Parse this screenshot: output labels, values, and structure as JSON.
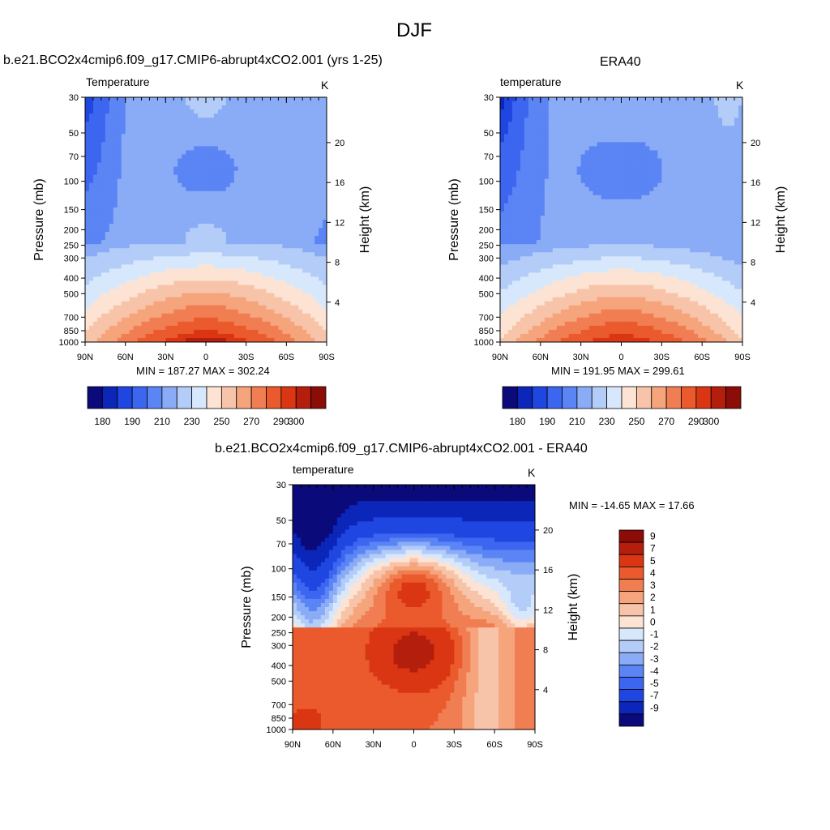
{
  "page_title": "DJF",
  "colors": {
    "temp_scale": [
      "#0a0a7a",
      "#0b26b8",
      "#1f46e0",
      "#3d66f0",
      "#5b84f5",
      "#8aacf6",
      "#b3ccf8",
      "#d8e8fc",
      "#fde3d3",
      "#f7c4aa",
      "#f5a47c",
      "#f07e52",
      "#ea5a2c",
      "#da3614",
      "#b41e0c",
      "#8c0c07"
    ],
    "diff_scale": [
      "#0a0a7a",
      "#0b26b8",
      "#1f46e0",
      "#3d66f0",
      "#5b84f5",
      "#8aacf6",
      "#b3ccf8",
      "#d8e8fc",
      "#fde3d3",
      "#f7c4aa",
      "#f5a47c",
      "#f07e52",
      "#ea5a2c",
      "#da3614",
      "#b41e0c",
      "#8c0c07"
    ]
  },
  "chart_data": [
    {
      "type": "heatmap",
      "case_title": "b.e21.BCO2x4cmip6.f09_g17.CMIP6-abrupt4xCO2.001 (yrs 1-25)",
      "left_string": "Temperature",
      "right_string": "K",
      "xlabel": "",
      "ylabel": "Pressure (mb)",
      "y2label": "Height (km)",
      "xticks": [
        "90N",
        "60N",
        "30N",
        "0",
        "30S",
        "60S",
        "90S"
      ],
      "yticks": [
        "30",
        "50",
        "70",
        "100",
        "150",
        "200",
        "250",
        "300",
        "400",
        "500",
        "700",
        "850",
        "1000"
      ],
      "y2ticks": [
        "20",
        "16",
        "12",
        "8",
        "4"
      ],
      "stats": "MIN = 187.27  MAX = 302.24",
      "colorbar_labels": [
        "180",
        "190",
        "210",
        "230",
        "250",
        "270",
        "290",
        "300"
      ],
      "min": 187.27,
      "max": 302.24
    },
    {
      "type": "heatmap",
      "case_title": "ERA40",
      "left_string": "temperature",
      "right_string": "K",
      "xlabel": "",
      "ylabel": "Pressure (mb)",
      "y2label": "Height (km)",
      "xticks": [
        "90N",
        "60N",
        "30N",
        "0",
        "30S",
        "60S",
        "90S"
      ],
      "yticks": [
        "30",
        "50",
        "70",
        "100",
        "150",
        "200",
        "250",
        "300",
        "400",
        "500",
        "700",
        "850",
        "1000"
      ],
      "y2ticks": [
        "20",
        "16",
        "12",
        "8",
        "4"
      ],
      "stats": "MIN = 191.95  MAX = 299.61",
      "colorbar_labels": [
        "180",
        "190",
        "210",
        "230",
        "250",
        "270",
        "290",
        "300"
      ],
      "min": 191.95,
      "max": 299.61
    },
    {
      "type": "heatmap",
      "case_title": "b.e21.BCO2x4cmip6.f09_g17.CMIP6-abrupt4xCO2.001 - ERA40",
      "left_string": "temperature",
      "right_string": "K",
      "xlabel": "",
      "ylabel": "Pressure (mb)",
      "y2label": "Height (km)",
      "xticks": [
        "90N",
        "60N",
        "30N",
        "0",
        "30S",
        "60S",
        "90S"
      ],
      "yticks": [
        "30",
        "50",
        "70",
        "100",
        "150",
        "200",
        "250",
        "300",
        "400",
        "500",
        "700",
        "850",
        "1000"
      ],
      "y2ticks": [
        "20",
        "16",
        "12",
        "8",
        "4"
      ],
      "stats": "MIN = -14.65  MAX =  17.66",
      "colorbar_labels": [
        "9",
        "7",
        "5",
        "4",
        "3",
        "2",
        "1",
        "0",
        "-1",
        "-2",
        "-3",
        "-4",
        "-5",
        "-7",
        "-9"
      ],
      "min": -14.65,
      "max": 17.66
    }
  ]
}
